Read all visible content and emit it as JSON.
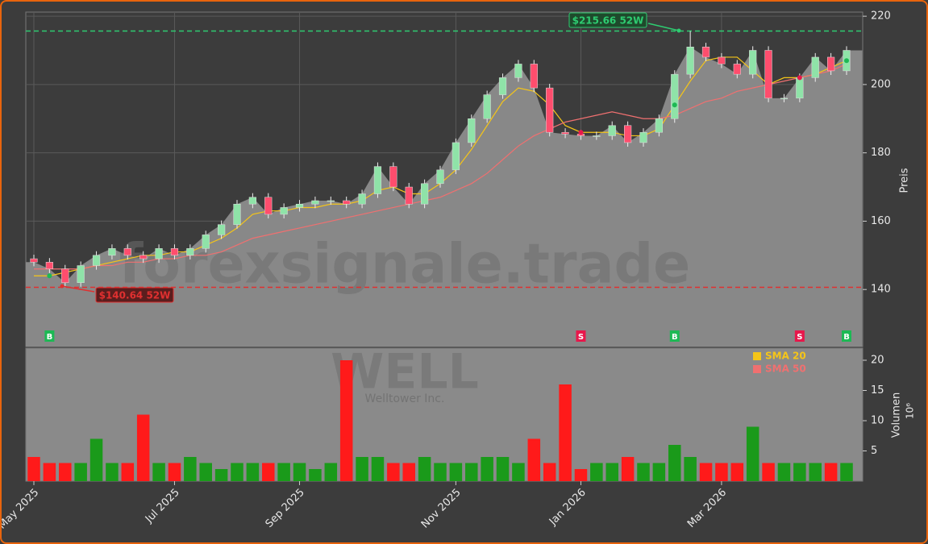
{
  "chart_data": {
    "type": "candlestick",
    "watermark": "forexsignale.trade",
    "ticker": "WELL",
    "company": "Welltower Inc.",
    "ylabel": "Preis",
    "y2label": "Volumen",
    "y2unit": "10⁶",
    "categories": [
      "May 2025",
      null,
      null,
      null,
      null,
      null,
      null,
      null,
      null,
      "Jul 2025",
      null,
      null,
      null,
      null,
      null,
      null,
      null,
      "Sep 2025",
      null,
      null,
      null,
      null,
      null,
      null,
      null,
      null,
      null,
      "Nov 2025",
      null,
      null,
      null,
      null,
      null,
      null,
      null,
      "Jan 2026",
      null,
      null,
      null,
      null,
      null,
      null,
      null,
      null,
      "Mar 2026",
      null,
      null,
      null,
      null,
      null,
      null,
      null,
      null
    ],
    "open": [
      149,
      148,
      146,
      142,
      147,
      150,
      152,
      150,
      149,
      152,
      150,
      152,
      156,
      159,
      165,
      167,
      162,
      164,
      165,
      166,
      166,
      165,
      168,
      176,
      170,
      165,
      171,
      175,
      183,
      190,
      197,
      202,
      206,
      199,
      186,
      185.5,
      185,
      185,
      188,
      183,
      186,
      190,
      203,
      211,
      208,
      206,
      203,
      210,
      196,
      196,
      202,
      208,
      204
    ],
    "high": [
      150.2,
      149.2,
      147.2,
      148.2,
      151.2,
      153.2,
      153.2,
      151.2,
      153.2,
      153.2,
      153.2,
      157.2,
      160.2,
      166.2,
      168.2,
      168.2,
      165.2,
      166.2,
      167.2,
      167.2,
      167.2,
      169.2,
      177.2,
      177.2,
      171.2,
      172.2,
      176.2,
      184.2,
      191.2,
      198.2,
      203.2,
      207.2,
      207.2,
      200.2,
      187.2,
      186.7,
      186.2,
      189.2,
      189.2,
      187.2,
      191.2,
      204.2,
      215.66,
      212.2,
      209.2,
      207.2,
      211.2,
      211.2,
      197.2,
      203.2,
      209.2,
      209.2,
      211.2
    ],
    "low": [
      146.8,
      144.8,
      140.64,
      140.8,
      145.8,
      148.8,
      148.8,
      147.8,
      147.8,
      148.8,
      148.8,
      150.8,
      154.8,
      157.8,
      163.8,
      160.8,
      160.8,
      162.8,
      163.8,
      164.8,
      163.8,
      163.8,
      166.8,
      168.8,
      163.8,
      163.8,
      169.8,
      173.8,
      181.8,
      188.8,
      195.8,
      200.8,
      197.8,
      184.8,
      184.3,
      183.8,
      183.8,
      183.8,
      181.8,
      181.8,
      184.8,
      188.8,
      201.8,
      206.8,
      204.8,
      201.8,
      201.8,
      194.8,
      194.8,
      194.8,
      200.8,
      202.8,
      202.8
    ],
    "close": [
      148,
      146,
      142,
      147,
      150,
      152,
      150,
      149,
      152,
      150,
      152,
      156,
      159,
      165,
      167,
      162,
      164,
      165,
      166,
      166,
      165,
      168,
      176,
      170,
      165,
      171,
      175,
      183,
      190,
      197,
      202,
      206,
      199,
      186,
      185.5,
      185,
      185,
      188,
      183,
      186,
      190,
      203,
      211,
      208,
      206,
      203,
      210,
      196,
      196,
      202,
      208,
      204,
      210
    ],
    "volume": [
      4,
      3,
      3,
      3,
      7,
      3,
      3,
      11,
      3,
      3,
      4,
      3,
      2,
      3,
      3,
      3,
      3,
      3,
      2,
      3,
      20,
      4,
      4,
      3,
      3,
      4,
      3,
      3,
      3,
      4,
      4,
      3,
      7,
      3,
      16,
      2,
      3,
      3,
      4,
      3,
      3,
      6,
      4,
      3,
      3,
      3,
      9,
      3,
      3,
      3,
      3,
      3,
      3
    ],
    "series": [
      {
        "name": "SMA 20",
        "color": "#f5c518",
        "values": [
          144,
          144,
          145,
          146,
          147,
          148,
          149,
          150,
          150,
          151,
          151,
          153,
          155,
          158,
          162,
          163,
          163,
          164,
          164,
          165,
          165,
          166,
          169,
          170,
          168,
          168,
          171,
          175,
          181,
          188,
          195,
          199,
          198,
          194,
          188,
          186,
          186,
          186,
          185,
          185,
          187,
          194,
          201,
          207,
          208,
          208,
          204,
          200,
          202,
          202,
          203,
          205,
          207
        ]
      },
      {
        "name": "SMA 50",
        "color": "#f07070",
        "values": [
          146,
          146,
          146,
          146,
          147,
          147,
          148,
          148,
          149,
          149,
          150,
          150,
          151,
          153,
          155,
          156,
          157,
          158,
          159,
          160,
          161,
          162,
          163,
          164,
          165,
          166,
          167,
          169,
          171,
          174,
          178,
          182,
          185,
          187,
          189,
          190,
          191,
          192,
          191,
          190,
          190,
          191,
          193,
          195,
          196,
          198,
          199,
          200,
          201,
          202,
          203,
          204,
          206
        ]
      }
    ],
    "signals": [
      {
        "label": "B",
        "index": 1,
        "color": "#1db954"
      },
      {
        "label": "S",
        "index": 35,
        "color": "#e8174b"
      },
      {
        "label": "B",
        "index": 41,
        "color": "#1db954"
      },
      {
        "label": "S",
        "index": 49,
        "color": "#e8174b"
      },
      {
        "label": "B",
        "index": 52,
        "color": "#1db954"
      }
    ],
    "annotations": [
      {
        "label": "$215.66 52W",
        "value": 215.66,
        "color": "#2ecc71"
      },
      {
        "label": "$140.64 52W",
        "value": 140.64,
        "color": "#e03030"
      }
    ],
    "up_color": "#8fe3a8",
    "down_color": "#ff4d6d",
    "volume_up_color": "#1a9a1a",
    "volume_down_color": "#ff1a1a",
    "ylim": [
      123.3,
      221.2
    ],
    "yticks": [
      140,
      160,
      180,
      200,
      220
    ],
    "y2lim": [
      0,
      22
    ],
    "y2ticks": [
      5,
      10,
      15,
      20
    ],
    "grid": true
  }
}
